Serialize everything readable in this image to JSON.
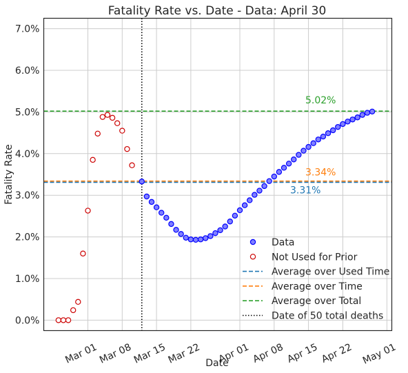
{
  "chart_data": {
    "type": "scatter",
    "title": "Fatality Rate vs. Date - Data: April 30",
    "xlabel": "Date",
    "ylabel": "Fatality Rate",
    "x_range": [
      "2020-02-21",
      "2020-05-02"
    ],
    "ylim": [
      -0.25,
      7.25
    ],
    "y_unit": "%",
    "x_ticks": [
      {
        "date": "2020-03-01",
        "label": "Mar 01"
      },
      {
        "date": "2020-03-08",
        "label": "Mar 08"
      },
      {
        "date": "2020-03-15",
        "label": "Mar 15"
      },
      {
        "date": "2020-03-22",
        "label": "Mar 22"
      },
      {
        "date": "2020-04-01",
        "label": "Apr 01"
      },
      {
        "date": "2020-04-08",
        "label": "Apr 08"
      },
      {
        "date": "2020-04-15",
        "label": "Apr 15"
      },
      {
        "date": "2020-04-22",
        "label": "Apr 22"
      },
      {
        "date": "2020-05-01",
        "label": "May 01"
      }
    ],
    "y_ticks": [
      {
        "value": 0,
        "label": "0.0%"
      },
      {
        "value": 1,
        "label": "1.0%"
      },
      {
        "value": 2,
        "label": "2.0%"
      },
      {
        "value": 3,
        "label": "3.0%"
      },
      {
        "value": 4,
        "label": "4.0%"
      },
      {
        "value": 5,
        "label": "5.0%"
      },
      {
        "value": 6,
        "label": "6.0%"
      },
      {
        "value": 7,
        "label": "7.0%"
      }
    ],
    "grid": true,
    "legend_position": "lower-right",
    "series": [
      {
        "name": "Data",
        "marker": "filled-circle",
        "color": "#0000ff",
        "fill": "#8080ff",
        "points": [
          [
            "2020-03-12",
            3.33
          ],
          [
            "2020-03-13",
            2.97
          ],
          [
            "2020-03-14",
            2.84
          ],
          [
            "2020-03-15",
            2.71
          ],
          [
            "2020-03-16",
            2.58
          ],
          [
            "2020-03-17",
            2.46
          ],
          [
            "2020-03-18",
            2.31
          ],
          [
            "2020-03-19",
            2.17
          ],
          [
            "2020-03-20",
            2.07
          ],
          [
            "2020-03-21",
            1.98
          ],
          [
            "2020-03-22",
            1.94
          ],
          [
            "2020-03-23",
            1.93
          ],
          [
            "2020-03-24",
            1.94
          ],
          [
            "2020-03-25",
            1.97
          ],
          [
            "2020-03-26",
            2.02
          ],
          [
            "2020-03-27",
            2.09
          ],
          [
            "2020-03-28",
            2.16
          ],
          [
            "2020-03-29",
            2.25
          ],
          [
            "2020-03-30",
            2.37
          ],
          [
            "2020-03-31",
            2.51
          ],
          [
            "2020-04-01",
            2.64
          ],
          [
            "2020-04-02",
            2.76
          ],
          [
            "2020-04-03",
            2.88
          ],
          [
            "2020-04-04",
            3.01
          ],
          [
            "2020-04-05",
            3.11
          ],
          [
            "2020-04-06",
            3.22
          ],
          [
            "2020-04-07",
            3.34
          ],
          [
            "2020-04-08",
            3.45
          ],
          [
            "2020-04-09",
            3.56
          ],
          [
            "2020-04-10",
            3.66
          ],
          [
            "2020-04-11",
            3.76
          ],
          [
            "2020-04-12",
            3.86
          ],
          [
            "2020-04-13",
            3.97
          ],
          [
            "2020-04-14",
            4.07
          ],
          [
            "2020-04-15",
            4.16
          ],
          [
            "2020-04-16",
            4.25
          ],
          [
            "2020-04-17",
            4.34
          ],
          [
            "2020-04-18",
            4.41
          ],
          [
            "2020-04-19",
            4.49
          ],
          [
            "2020-04-20",
            4.56
          ],
          [
            "2020-04-21",
            4.64
          ],
          [
            "2020-04-22",
            4.71
          ],
          [
            "2020-04-23",
            4.77
          ],
          [
            "2020-04-24",
            4.82
          ],
          [
            "2020-04-25",
            4.87
          ],
          [
            "2020-04-26",
            4.93
          ],
          [
            "2020-04-27",
            4.98
          ],
          [
            "2020-04-28",
            5.01
          ]
        ]
      },
      {
        "name": "Not Used for Prior",
        "marker": "open-circle",
        "color": "#cc0000",
        "points": [
          [
            "2020-02-24",
            0.0
          ],
          [
            "2020-02-25",
            0.0
          ],
          [
            "2020-02-26",
            0.0
          ],
          [
            "2020-02-27",
            0.24
          ],
          [
            "2020-02-28",
            0.44
          ],
          [
            "2020-02-29",
            1.6
          ],
          [
            "2020-03-01",
            2.63
          ],
          [
            "2020-03-02",
            3.85
          ],
          [
            "2020-03-03",
            4.48
          ],
          [
            "2020-03-04",
            4.88
          ],
          [
            "2020-03-05",
            4.93
          ],
          [
            "2020-03-06",
            4.86
          ],
          [
            "2020-03-07",
            4.73
          ],
          [
            "2020-03-08",
            4.55
          ],
          [
            "2020-03-09",
            4.11
          ],
          [
            "2020-03-10",
            3.72
          ]
        ]
      }
    ],
    "reference_lines": [
      {
        "name": "Average over Used Time",
        "orientation": "horizontal",
        "value": 3.31,
        "label": "3.31%",
        "color": "#1f77b4",
        "style": "dashed"
      },
      {
        "name": "Average over Time",
        "orientation": "horizontal",
        "value": 3.34,
        "label": "3.34%",
        "color": "#ff7f0e",
        "style": "dashed"
      },
      {
        "name": "Average over Total",
        "orientation": "horizontal",
        "value": 5.02,
        "label": "5.02%",
        "color": "#2ca02c",
        "style": "dashed"
      },
      {
        "name": "Date of 50 total deaths",
        "orientation": "vertical",
        "date": "2020-03-12",
        "color": "#000000",
        "style": "dotted"
      }
    ]
  }
}
